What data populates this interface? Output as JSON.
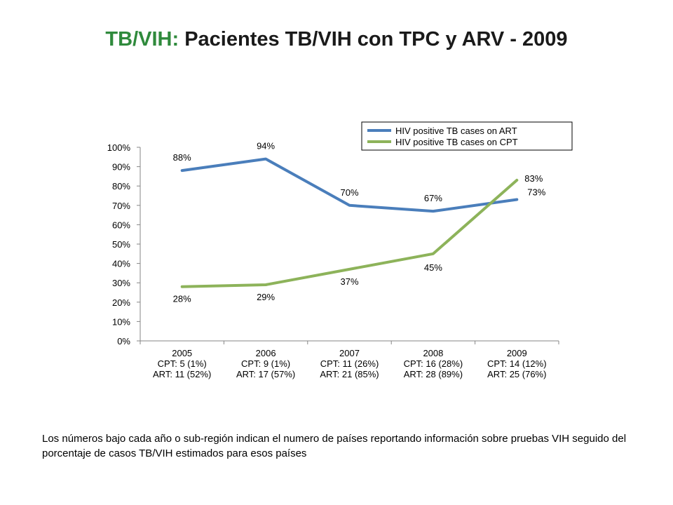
{
  "slide": {
    "title_prefix": "TB/VIH:",
    "title_main": "Pacientes TB/VIH con TPC y ARV - 2009",
    "footnote": "Los números bajo cada año o sub-región indican el numero de países reportando información sobre pruebas VIH seguido del porcentaje de casos TB/VIH  estimados para esos países"
  },
  "chart_data": {
    "type": "line",
    "categories": [
      "2005",
      "2006",
      "2007",
      "2008",
      "2009"
    ],
    "category_sublabels": [
      [
        "CPT: 5 (1%)",
        "ART: 11 (52%)"
      ],
      [
        "CPT: 9 (1%)",
        "ART: 17 (57%)"
      ],
      [
        "CPT: 11 (26%)",
        "ART: 21 (85%)"
      ],
      [
        "CPT: 16 (28%)",
        "ART: 28 (89%)"
      ],
      [
        "CPT: 14 (12%)",
        "ART: 25 (76%)"
      ]
    ],
    "series": [
      {
        "name": "HIV positive TB cases on ART",
        "color": "#4a7ebb",
        "values": [
          88,
          94,
          70,
          67,
          73
        ],
        "labels": [
          "88%",
          "94%",
          "70%",
          "67%",
          "73%"
        ]
      },
      {
        "name": "HIV positive TB cases on CPT",
        "color": "#8db35a",
        "values": [
          28,
          29,
          37,
          45,
          83
        ],
        "labels": [
          "28%",
          "29%",
          "37%",
          "45%",
          "83%"
        ]
      }
    ],
    "ylim": [
      0,
      100
    ],
    "yticks": [
      "0%",
      "10%",
      "20%",
      "30%",
      "40%",
      "50%",
      "60%",
      "70%",
      "80%",
      "90%",
      "100%"
    ],
    "grid": false,
    "legend_position": "top-right"
  }
}
